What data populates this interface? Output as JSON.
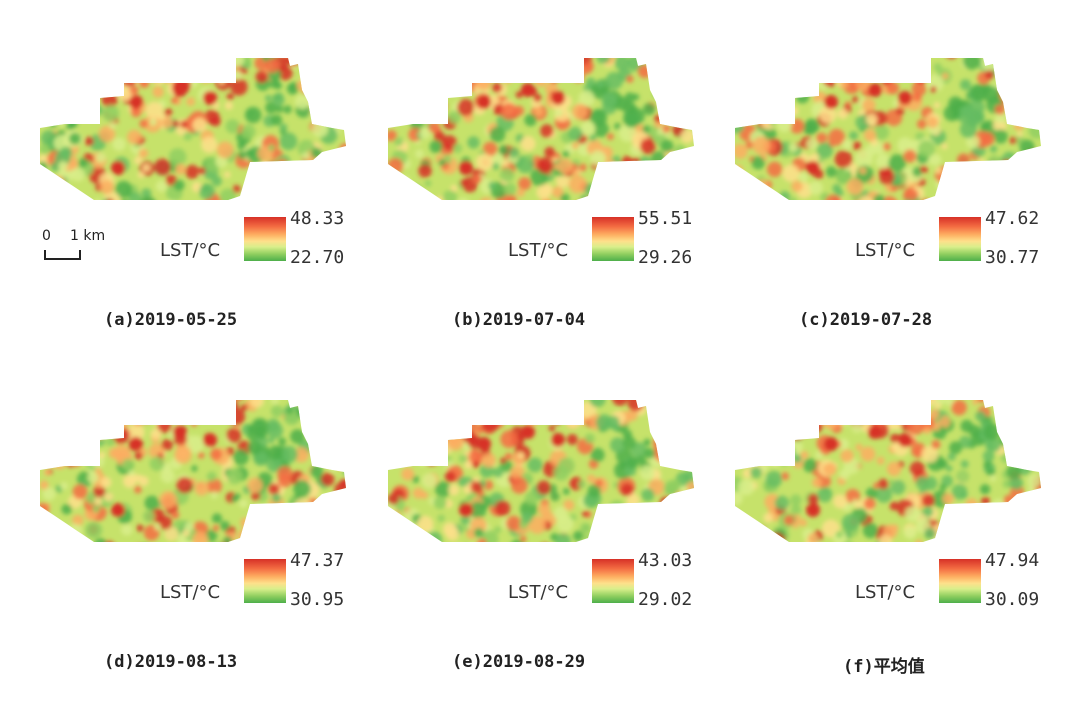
{
  "legend_colors": {
    "high": "#d73027",
    "mid": "#fee08b",
    "low": "#4daf4a"
  },
  "scale_bar": {
    "zero": "0",
    "one": "1 km"
  },
  "panels": [
    {
      "caption": "(a)2019-05-25",
      "legend_title": "LST/°C",
      "max": "48.33",
      "min": "22.70"
    },
    {
      "caption": "(b)2019-07-04",
      "legend_title": "LST/°C",
      "max": "55.51",
      "min": "29.26"
    },
    {
      "caption": "(c)2019-07-28",
      "legend_title": "LST/°C",
      "max": "47.62",
      "min": "30.77"
    },
    {
      "caption": "(d)2019-08-13",
      "legend_title": "LST/°C",
      "max": "47.37",
      "min": "30.95"
    },
    {
      "caption": "(e)2019-08-29",
      "legend_title": "LST/°C",
      "max": "43.03",
      "min": "29.02"
    },
    {
      "caption": "(f)平均值",
      "legend_title": "LST/°C",
      "max": "47.94",
      "min": "30.09"
    }
  ]
}
